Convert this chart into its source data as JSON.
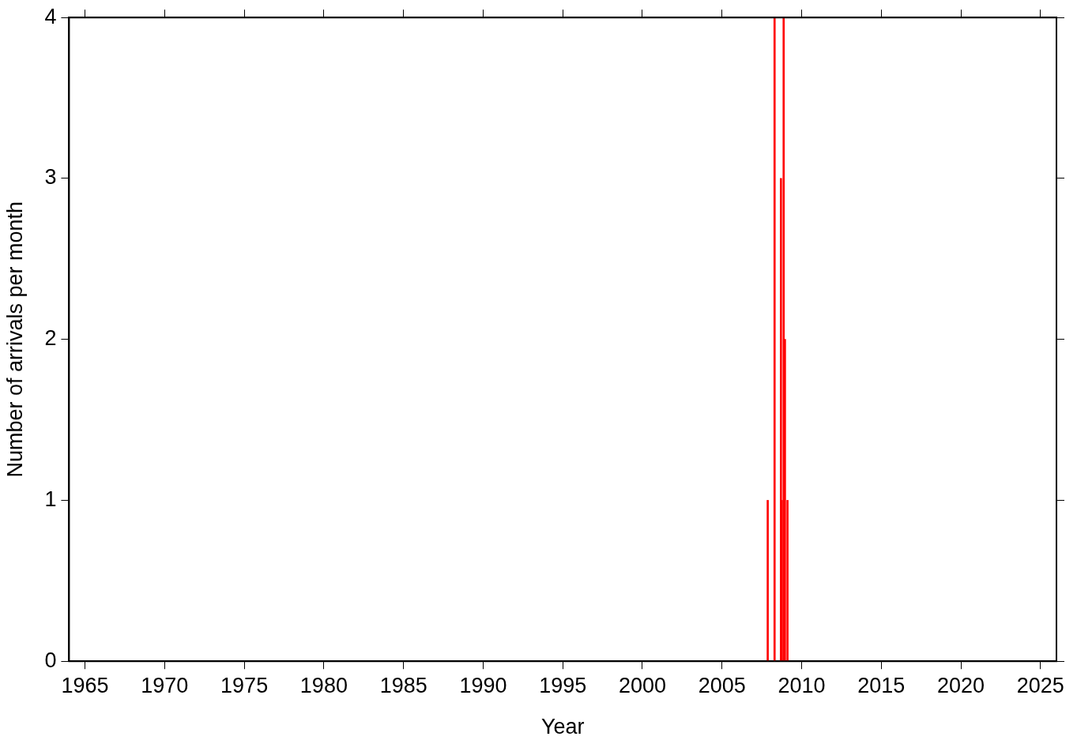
{
  "chart_data": {
    "type": "bar",
    "xlabel": "Year",
    "ylabel": "Number of arrivals per month",
    "x": [
      2007.87,
      2008.3,
      2008.7,
      2008.75,
      2008.87,
      2008.95,
      2009.11
    ],
    "values": [
      1,
      4,
      3,
      1,
      4,
      2,
      1
    ],
    "color": "#ff0000",
    "xlim": [
      1964,
      2026
    ],
    "xticks": [
      1965,
      1970,
      1975,
      1980,
      1985,
      1990,
      1995,
      2000,
      2005,
      2010,
      2015,
      2020,
      2025
    ],
    "ylim": [
      0,
      4
    ],
    "yticks": [
      0,
      1,
      2,
      3,
      4
    ],
    "grid": false,
    "legend": false
  }
}
